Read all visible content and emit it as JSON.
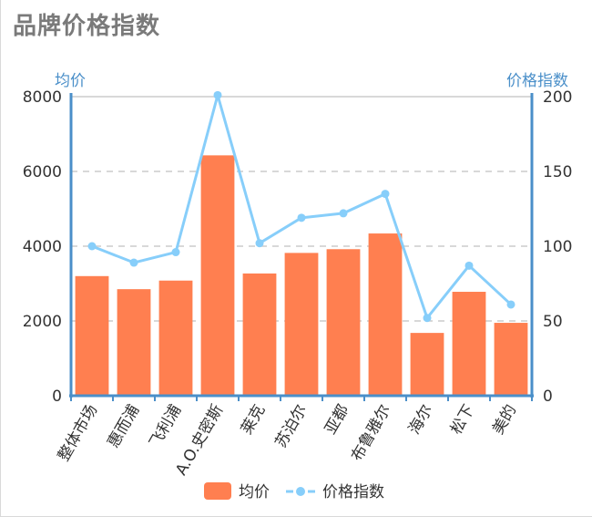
{
  "title": "品牌价格指数",
  "colors": {
    "bar": "#ff7f50",
    "line": "#87cefa",
    "axis": "#4a8fc9",
    "grid": "#cccccc",
    "text": "#333333",
    "title": "#7a7a7a"
  },
  "chart_data": {
    "type": "bar",
    "title": "品牌价格指数",
    "categories": [
      "整体市场",
      "惠而浦",
      "飞利浦",
      "A.O.史密斯",
      "莱克",
      "苏泊尔",
      "亚都",
      "布鲁雅尔",
      "海尔",
      "松下",
      "美的"
    ],
    "y_left": {
      "label": "均价",
      "ylim": [
        0,
        8000
      ],
      "ticks": [
        "0",
        "2000",
        "4000",
        "6000",
        "8000"
      ]
    },
    "y_right": {
      "label": "价格指数",
      "ylim": [
        0,
        200
      ],
      "ticks": [
        "0",
        "50",
        "100",
        "150",
        "200"
      ]
    },
    "grid": true,
    "legend": {
      "position": "bottom-center",
      "entries": [
        "均价",
        "价格指数"
      ]
    },
    "series": [
      {
        "name": "均价",
        "type": "bar",
        "axis": "left",
        "values": [
          3200,
          2850,
          3080,
          6430,
          3270,
          3820,
          3920,
          4340,
          1680,
          2780,
          1950
        ]
      },
      {
        "name": "价格指数",
        "type": "line",
        "axis": "right",
        "values": [
          100,
          89,
          96,
          201,
          102,
          119,
          122,
          135,
          52,
          87,
          61
        ]
      }
    ]
  }
}
